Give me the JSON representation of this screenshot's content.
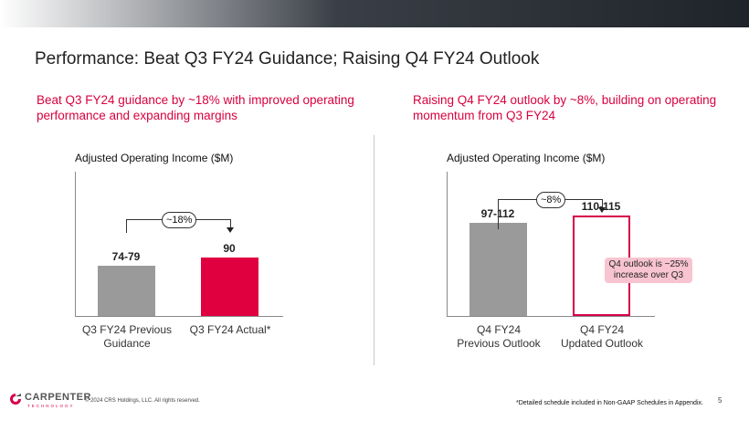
{
  "slide": {
    "title": "Performance: Beat Q3 FY24 Guidance; Raising Q4 FY24 Outlook",
    "left_subtitle": "Beat Q3 FY24 guidance by ~18% with improved operating performance and expanding margins",
    "right_subtitle": "Raising Q4 FY24 outlook by ~8%, building on operating momentum from Q3 FY24",
    "page_number": "5"
  },
  "footer": {
    "logo_text": "CARPENTER",
    "logo_sub": "TECHNOLOGY",
    "copyright": "© 2024 CRS Holdings, LLC. All rights reserved.",
    "footnote": "*Detailed schedule included in Non-GAAP Schedules in Appendix."
  },
  "colors": {
    "accent": "#e0003f",
    "gray_bar": "#9a9a9a",
    "callout": "#f8c4d2"
  },
  "chart_data": [
    {
      "type": "bar",
      "title": "Adjusted Operating Income ($M)",
      "categories": [
        "Q3 FY24 Previous Guidance",
        "Q3 FY24 Actual*"
      ],
      "values": [
        77,
        90
      ],
      "labels": [
        "74-79",
        "90"
      ],
      "annotation": "~18%"
    },
    {
      "type": "bar",
      "title": "Adjusted Operating Income ($M)",
      "categories": [
        "Q4 FY24 Previous Outlook",
        "Q4 FY24 Updated Outlook"
      ],
      "values": [
        104.5,
        112.5
      ],
      "labels": [
        "97-112",
        "110-115"
      ],
      "annotation": "~8%",
      "callout": "Q4 outlook is ~25% increase over Q3"
    }
  ],
  "left_chart_labels": {
    "cat1_line1": "Q3 FY24 Previous",
    "cat1_line2": "Guidance",
    "cat2_line1": "Q3 FY24 Actual*"
  },
  "right_chart_labels": {
    "cat1_line1": "Q4 FY24",
    "cat1_line2": "Previous Outlook",
    "cat2_line1": "Q4 FY24",
    "cat2_line2": "Updated Outlook"
  }
}
